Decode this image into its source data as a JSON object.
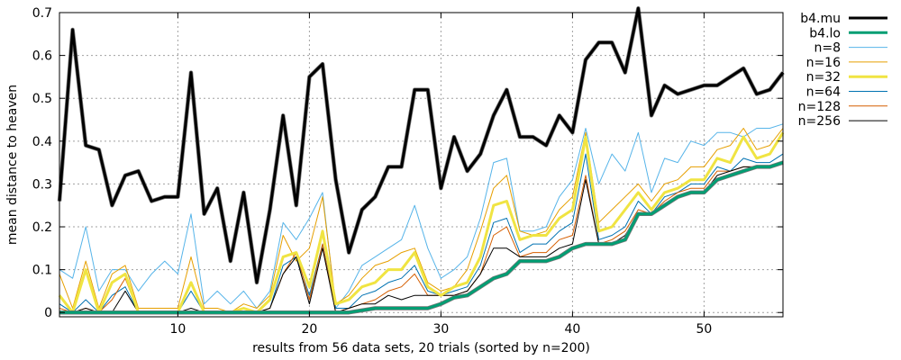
{
  "chart_data": {
    "type": "line",
    "title": "",
    "xlabel": "results from 56 data sets, 20 trials (sorted by n=200)",
    "ylabel": "mean distance to heaven",
    "xlim": [
      1,
      56
    ],
    "ylim": [
      -0.01,
      0.7
    ],
    "xticks": [
      10,
      20,
      30,
      40,
      50
    ],
    "yticks": [
      0,
      0.1,
      0.2,
      0.3,
      0.4,
      0.5,
      0.6,
      0.7
    ],
    "ytick_labels": [
      "0",
      "0.1",
      "0.2",
      "0.3",
      "0.4",
      "0.5",
      "0.6",
      "0.7"
    ],
    "grid": true,
    "legend_position": "outside-right",
    "x": [
      1,
      2,
      3,
      4,
      5,
      6,
      7,
      8,
      9,
      10,
      11,
      12,
      13,
      14,
      15,
      16,
      17,
      18,
      19,
      20,
      21,
      22,
      23,
      24,
      25,
      26,
      27,
      28,
      29,
      30,
      31,
      32,
      33,
      34,
      35,
      36,
      37,
      38,
      39,
      40,
      41,
      42,
      43,
      44,
      45,
      46,
      47,
      48,
      49,
      50,
      51,
      52,
      53,
      54,
      55,
      56
    ],
    "series": [
      {
        "name": "b4.mu",
        "color": "#000000",
        "width": 3,
        "values": [
          0.26,
          0.66,
          0.39,
          0.38,
          0.25,
          0.32,
          0.33,
          0.26,
          0.27,
          0.27,
          0.56,
          0.23,
          0.29,
          0.12,
          0.28,
          0.07,
          0.24,
          0.46,
          0.25,
          0.55,
          0.58,
          0.31,
          0.14,
          0.24,
          0.27,
          0.34,
          0.34,
          0.52,
          0.52,
          0.29,
          0.41,
          0.33,
          0.37,
          0.46,
          0.52,
          0.41,
          0.41,
          0.39,
          0.46,
          0.42,
          0.59,
          0.63,
          0.63,
          0.56,
          0.71,
          0.46,
          0.53,
          0.51,
          0.52,
          0.53,
          0.53,
          0.55,
          0.57,
          0.51,
          0.52,
          0.56
        ]
      },
      {
        "name": "b4.lo",
        "color": "#009e73",
        "width": 3,
        "values": [
          0,
          0,
          0,
          0,
          0,
          0,
          0,
          0,
          0,
          0,
          0,
          0,
          0,
          0,
          0,
          0,
          0,
          0,
          0,
          0,
          0,
          0,
          0,
          0.005,
          0.01,
          0.01,
          0.01,
          0.01,
          0.01,
          0.02,
          0.035,
          0.04,
          0.06,
          0.08,
          0.09,
          0.12,
          0.12,
          0.12,
          0.13,
          0.15,
          0.16,
          0.16,
          0.16,
          0.17,
          0.23,
          0.23,
          0.25,
          0.27,
          0.28,
          0.28,
          0.31,
          0.32,
          0.33,
          0.34,
          0.34,
          0.35
        ]
      },
      {
        "name": "n=8",
        "color": "#56b4e9",
        "width": 1,
        "values": [
          0.1,
          0.08,
          0.2,
          0.05,
          0.1,
          0.1,
          0.05,
          0.09,
          0.12,
          0.09,
          0.23,
          0.02,
          0.05,
          0.02,
          0.05,
          0.01,
          0.05,
          0.21,
          0.17,
          0.22,
          0.28,
          0.01,
          0.05,
          0.11,
          0.13,
          0.15,
          0.17,
          0.25,
          0.15,
          0.08,
          0.1,
          0.13,
          0.22,
          0.35,
          0.36,
          0.19,
          0.19,
          0.2,
          0.27,
          0.31,
          0.43,
          0.3,
          0.37,
          0.33,
          0.42,
          0.28,
          0.36,
          0.35,
          0.4,
          0.39,
          0.42,
          0.42,
          0.41,
          0.43,
          0.43,
          0.44
        ]
      },
      {
        "name": "n=16",
        "color": "#e69f00",
        "width": 1,
        "values": [
          0.09,
          0.01,
          0.12,
          0.01,
          0.09,
          0.11,
          0.01,
          0.01,
          0.01,
          0.01,
          0.13,
          0.01,
          0.01,
          0.0,
          0.02,
          0.01,
          0.04,
          0.18,
          0.12,
          0.15,
          0.27,
          0.02,
          0.04,
          0.08,
          0.11,
          0.12,
          0.14,
          0.15,
          0.07,
          0.05,
          0.06,
          0.1,
          0.19,
          0.29,
          0.32,
          0.19,
          0.18,
          0.19,
          0.24,
          0.27,
          0.42,
          0.21,
          0.24,
          0.27,
          0.3,
          0.26,
          0.3,
          0.31,
          0.34,
          0.34,
          0.38,
          0.39,
          0.43,
          0.38,
          0.39,
          0.43
        ]
      },
      {
        "name": "n=32",
        "color": "#f0e442",
        "width": 3,
        "values": [
          0.04,
          0.0,
          0.1,
          0.0,
          0.07,
          0.09,
          0.0,
          0.0,
          0.0,
          0.0,
          0.07,
          0.0,
          0.0,
          0.0,
          0.01,
          0.0,
          0.03,
          0.13,
          0.14,
          0.06,
          0.19,
          0.02,
          0.03,
          0.06,
          0.07,
          0.1,
          0.1,
          0.14,
          0.06,
          0.04,
          0.06,
          0.07,
          0.13,
          0.25,
          0.26,
          0.17,
          0.18,
          0.18,
          0.22,
          0.24,
          0.41,
          0.19,
          0.2,
          0.24,
          0.28,
          0.24,
          0.28,
          0.29,
          0.31,
          0.31,
          0.36,
          0.35,
          0.41,
          0.36,
          0.37,
          0.42
        ]
      },
      {
        "name": "n=64",
        "color": "#0072b2",
        "width": 1,
        "values": [
          0.02,
          0.0,
          0.03,
          0.0,
          0.04,
          0.06,
          0.0,
          0.0,
          0.0,
          0.0,
          0.05,
          0.0,
          0.0,
          0.0,
          0.0,
          0.0,
          0.01,
          0.11,
          0.13,
          0.04,
          0.16,
          0.01,
          0.01,
          0.04,
          0.05,
          0.07,
          0.08,
          0.11,
          0.05,
          0.04,
          0.05,
          0.06,
          0.11,
          0.21,
          0.22,
          0.14,
          0.16,
          0.16,
          0.19,
          0.21,
          0.37,
          0.17,
          0.18,
          0.2,
          0.26,
          0.23,
          0.27,
          0.28,
          0.3,
          0.3,
          0.34,
          0.33,
          0.36,
          0.35,
          0.35,
          0.37
        ]
      },
      {
        "name": "n=128",
        "color": "#d55e00",
        "width": 1,
        "values": [
          0.01,
          0.0,
          0.01,
          0.0,
          0.03,
          0.08,
          0.0,
          0.0,
          0.0,
          0.0,
          0.0,
          0.0,
          0.0,
          0.0,
          0.0,
          0.0,
          0.01,
          0.09,
          0.14,
          0.03,
          0.16,
          0.0,
          0.01,
          0.02,
          0.03,
          0.05,
          0.06,
          0.09,
          0.04,
          0.04,
          0.04,
          0.05,
          0.09,
          0.18,
          0.2,
          0.13,
          0.14,
          0.14,
          0.17,
          0.18,
          0.32,
          0.16,
          0.17,
          0.19,
          0.24,
          0.23,
          0.26,
          0.28,
          0.29,
          0.29,
          0.33,
          0.33,
          0.34,
          0.34,
          0.34,
          0.35
        ]
      },
      {
        "name": "n=256",
        "color": "#000000",
        "width": 1,
        "values": [
          0.0,
          0.0,
          0.01,
          0.0,
          0.0,
          0.05,
          0.0,
          0.0,
          0.0,
          0.0,
          0.01,
          0.0,
          0.0,
          0.0,
          0.0,
          0.0,
          0.01,
          0.09,
          0.13,
          0.02,
          0.15,
          0.0,
          0.01,
          0.02,
          0.02,
          0.04,
          0.03,
          0.04,
          0.04,
          0.04,
          0.04,
          0.05,
          0.09,
          0.15,
          0.15,
          0.13,
          0.13,
          0.13,
          0.15,
          0.16,
          0.31,
          0.16,
          0.16,
          0.18,
          0.23,
          0.23,
          0.25,
          0.27,
          0.28,
          0.28,
          0.32,
          0.33,
          0.34,
          0.34,
          0.34,
          0.35
        ]
      }
    ]
  }
}
